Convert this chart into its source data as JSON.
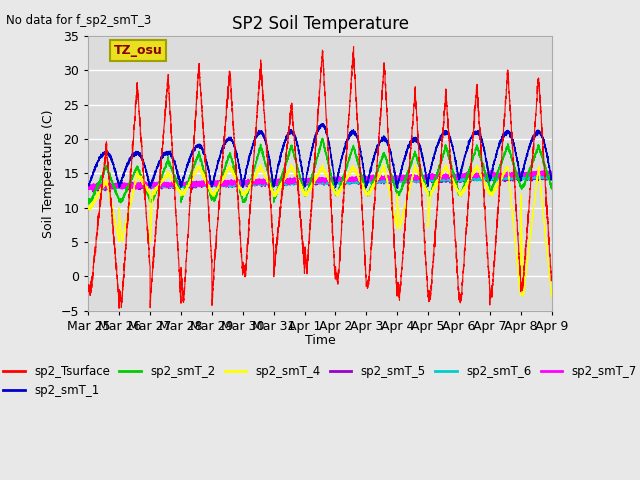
{
  "title": "SP2 Soil Temperature",
  "xlabel": "Time",
  "ylabel": "Soil Temperature (C)",
  "no_data_text": "No data for f_sp2_smT_3",
  "tz_label": "TZ_osu",
  "ylim": [
    -5,
    35
  ],
  "fig_bg_color": "#e8e8e8",
  "plot_bg_color": "#dcdcdc",
  "grid_color": "#c8c8c8",
  "series_colors": {
    "sp2_Tsurface": "#ff0000",
    "sp2_smT_1": "#0000cc",
    "sp2_smT_2": "#00cc00",
    "sp2_smT_4": "#ffff00",
    "sp2_smT_5": "#9900cc",
    "sp2_smT_6": "#00cccc",
    "sp2_smT_7": "#ff00ff"
  },
  "x_tick_labels": [
    "Mar 25",
    "Mar 26",
    "Mar 27",
    "Mar 28",
    "Mar 29",
    "Mar 30",
    "Mar 31",
    "Apr 1",
    "Apr 2",
    "Apr 3",
    "Apr 4",
    "Apr 5",
    "Apr 6",
    "Apr 7",
    "Apr 8",
    "Apr 9"
  ],
  "n_days": 15,
  "points_per_day": 288,
  "surface_peaks": [
    19,
    28,
    29,
    31,
    30,
    31,
    25,
    33,
    33,
    31,
    27,
    27,
    28,
    30,
    29
  ],
  "surface_troughs": [
    -2,
    -4,
    1,
    -4,
    2,
    0,
    4,
    1,
    -1,
    -1,
    -3,
    -3,
    -3,
    -2,
    -1
  ],
  "surface_base": [
    13,
    13,
    13,
    13,
    13,
    13,
    14,
    14,
    14,
    14,
    13,
    13,
    13,
    14,
    14
  ],
  "sm1_peaks": [
    18,
    18,
    18,
    19,
    20,
    21,
    21,
    22,
    21,
    20,
    20,
    21,
    21,
    21,
    21
  ],
  "sm1_base": [
    13,
    13,
    13,
    13,
    13,
    13,
    13,
    13,
    13,
    13,
    13,
    14,
    14,
    14,
    14
  ],
  "sm2_peaks": [
    16,
    16,
    17,
    18,
    18,
    19,
    19,
    20,
    19,
    18,
    18,
    19,
    19,
    19,
    19
  ],
  "sm2_troughs": [
    11,
    11,
    11,
    12,
    11,
    11,
    12,
    12,
    12,
    12,
    12,
    12,
    12,
    13,
    13
  ],
  "sm2_base": [
    13,
    13,
    13,
    13,
    13,
    13,
    14,
    14,
    13,
    13,
    13,
    14,
    14,
    14,
    14
  ],
  "sm4_peaks": [
    14,
    15,
    15,
    16,
    16,
    16,
    16,
    16,
    16,
    16,
    16,
    16,
    16,
    16,
    16
  ],
  "sm4_base": [
    13,
    13,
    13,
    13,
    13,
    13,
    14,
    14,
    13.5,
    14,
    14,
    14,
    14,
    14,
    14
  ]
}
